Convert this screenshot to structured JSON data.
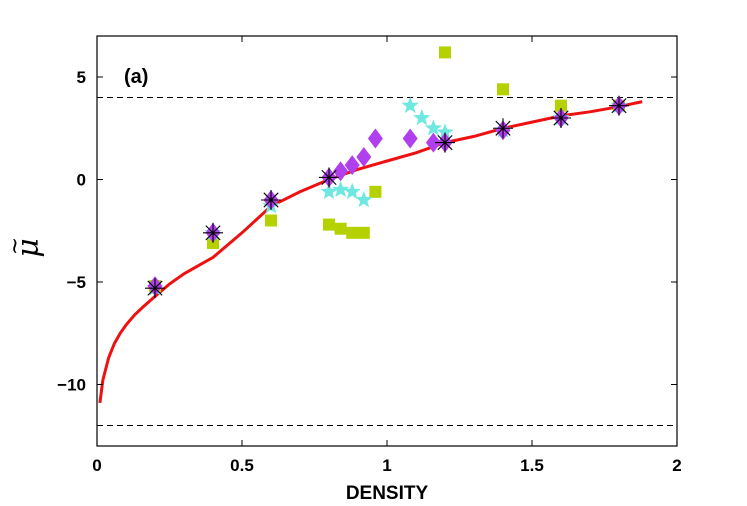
{
  "chart_data": {
    "type": "scatter",
    "panel_label": "(a)",
    "xlabel": "DENSITY",
    "ylabel": "μ",
    "ylabel_accent": "~",
    "xlim": [
      0,
      2
    ],
    "ylim": [
      -13,
      7
    ],
    "xticks": [
      0,
      0.5,
      1,
      1.5,
      2
    ],
    "xtick_labels": [
      "0",
      "0.5",
      "1",
      "1.5",
      "2"
    ],
    "yticks": [
      5,
      0,
      -5,
      -10
    ],
    "ytick_labels": [
      "5",
      "0",
      "−5",
      "−10"
    ],
    "reference_lines": [
      4,
      -12
    ],
    "fit_curve": {
      "name": "fit",
      "color": "#ee1111",
      "x": [
        0.01,
        0.02,
        0.04,
        0.06,
        0.08,
        0.1,
        0.13,
        0.16,
        0.2,
        0.25,
        0.3,
        0.35,
        0.4,
        0.5,
        0.6,
        0.7,
        0.8,
        0.9,
        1.0,
        1.1,
        1.2,
        1.3,
        1.4,
        1.5,
        1.6,
        1.7,
        1.8,
        1.88
      ],
      "y": [
        -10.9,
        -9.8,
        -8.7,
        -8.0,
        -7.5,
        -7.1,
        -6.6,
        -6.2,
        -5.7,
        -5.1,
        -4.6,
        -4.2,
        -3.8,
        -2.6,
        -1.3,
        -0.6,
        0.0,
        0.5,
        0.9,
        1.3,
        1.8,
        2.1,
        2.5,
        2.8,
        3.1,
        3.3,
        3.55,
        3.8
      ]
    },
    "series": [
      {
        "name": "squares",
        "marker": "square",
        "color": "#b5d100",
        "x": [
          0.2,
          0.4,
          0.6,
          0.8,
          0.84,
          0.88,
          0.92,
          0.96,
          1.2,
          1.4,
          1.6,
          1.8
        ],
        "y": [
          -5.2,
          -3.1,
          -2.0,
          -2.2,
          -2.4,
          -2.6,
          -2.6,
          -0.6,
          6.2,
          4.4,
          3.6,
          3.6
        ]
      },
      {
        "name": "stars",
        "marker": "star",
        "color": "#6ee8e0",
        "x": [
          0.2,
          0.4,
          0.6,
          0.8,
          0.84,
          0.88,
          0.92,
          1.08,
          1.12,
          1.16,
          1.2,
          1.4,
          1.6,
          1.8
        ],
        "y": [
          -5.3,
          -2.6,
          -1.3,
          -0.6,
          -0.5,
          -0.6,
          -1.0,
          3.6,
          3.0,
          2.5,
          2.3,
          2.4,
          3.0,
          3.6
        ]
      },
      {
        "name": "diamonds",
        "marker": "diamond",
        "color": "#b040ee",
        "x": [
          0.2,
          0.4,
          0.6,
          0.8,
          0.84,
          0.88,
          0.92,
          0.96,
          1.08,
          1.16,
          1.2,
          1.4,
          1.6,
          1.8
        ],
        "y": [
          -5.2,
          -2.6,
          -1.0,
          0.1,
          0.4,
          0.7,
          1.1,
          2.0,
          2.0,
          1.8,
          1.8,
          2.4,
          3.0,
          3.6
        ]
      },
      {
        "name": "asterisks",
        "marker": "asterisk",
        "color": "#000000",
        "x": [
          0.2,
          0.4,
          0.6,
          0.8,
          1.2,
          1.4,
          1.6,
          1.8
        ],
        "y": [
          -5.3,
          -2.6,
          -1.0,
          0.1,
          1.8,
          2.5,
          3.0,
          3.6
        ]
      }
    ]
  }
}
